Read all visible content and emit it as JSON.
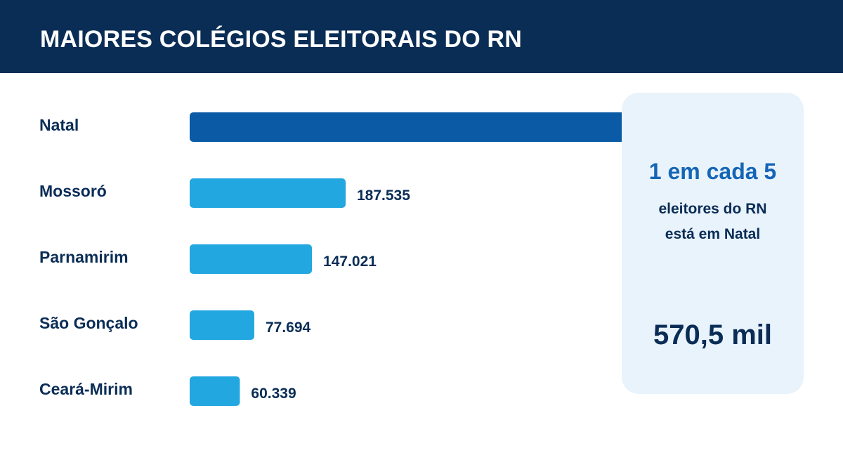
{
  "header": {
    "title": "MAIORES COLÉGIOS ELEITORAIS DO RN"
  },
  "callout": {
    "headline": "1 em cada 5",
    "line1": "eleitores do RN",
    "line2": "está em Natal",
    "big_value": "570,5 mil"
  },
  "colors": {
    "header_bg": "#0a2d56",
    "highlight_bar": "#0b5aa6",
    "bar": "#22a7e0",
    "text_dark": "#0a2d56",
    "callout_bg": "#e9f3fc",
    "callout_accent": "#1565b6"
  },
  "chart_data": {
    "type": "bar",
    "orientation": "horizontal",
    "categories": [
      "Natal",
      "Mossoró",
      "Parnamirim",
      "São Gonçalo",
      "Ceará-Mirim"
    ],
    "values": [
      570500,
      187535,
      147021,
      77694,
      60339
    ],
    "value_labels": [
      "",
      "187.535",
      "147.021",
      "77.694",
      "60.339"
    ],
    "highlight_index": 0,
    "title": "MAIORES COLÉGIOS ELEITORAIS DO RN",
    "xlabel": "",
    "ylabel": ""
  }
}
